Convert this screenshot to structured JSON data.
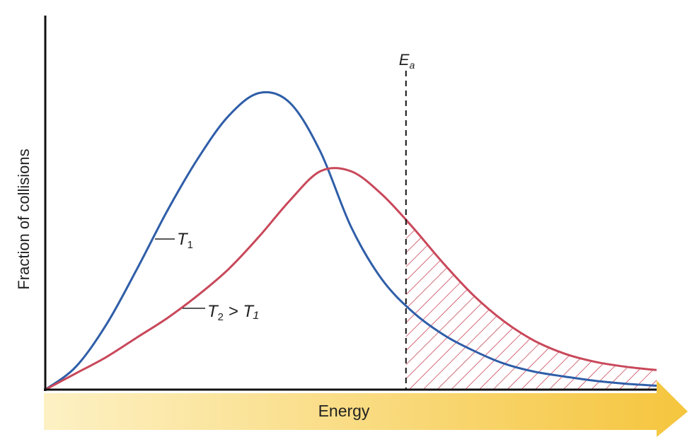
{
  "chart_data": {
    "type": "line",
    "title": "",
    "xlabel": "Energy",
    "ylabel": "Fraction of collisions",
    "xlim": [
      0,
      1
    ],
    "ylim": [
      0,
      1
    ],
    "grid": false,
    "legend": "none",
    "activation_energy": {
      "label_main": "E",
      "label_sub": "a",
      "x": 0.59
    },
    "series": [
      {
        "name": "T1",
        "label_main": "T",
        "label_sub": "1",
        "label_tail": "",
        "color": "#2f5ea8",
        "x": [
          0.0,
          0.05,
          0.1,
          0.15,
          0.2,
          0.25,
          0.3,
          0.35,
          0.4,
          0.45,
          0.5,
          0.55,
          0.6,
          0.65,
          0.7,
          0.75,
          0.8,
          0.85,
          0.9,
          0.95,
          1.0
        ],
        "y": [
          0.0,
          0.07,
          0.2,
          0.37,
          0.55,
          0.71,
          0.84,
          0.91,
          0.88,
          0.73,
          0.5,
          0.34,
          0.24,
          0.17,
          0.12,
          0.08,
          0.055,
          0.04,
          0.027,
          0.018,
          0.012
        ]
      },
      {
        "name": "T2 > T1",
        "label_main": "T",
        "label_sub": "2",
        "label_tail": " > T₁",
        "color": "#c8485a",
        "x": [
          0.0,
          0.05,
          0.1,
          0.15,
          0.2,
          0.25,
          0.3,
          0.35,
          0.4,
          0.45,
          0.5,
          0.55,
          0.6,
          0.65,
          0.7,
          0.75,
          0.8,
          0.85,
          0.9,
          0.95,
          1.0
        ],
        "y": [
          0.0,
          0.05,
          0.1,
          0.16,
          0.22,
          0.29,
          0.37,
          0.47,
          0.58,
          0.67,
          0.67,
          0.6,
          0.5,
          0.39,
          0.29,
          0.21,
          0.15,
          0.11,
          0.085,
          0.07,
          0.06
        ]
      }
    ],
    "shaded_region": {
      "series": "T2 > T1",
      "from_x": 0.59,
      "to_x": 1.0,
      "pattern": "hatched",
      "color": "#c8485a"
    },
    "arrow_color": "#f5c53d"
  }
}
